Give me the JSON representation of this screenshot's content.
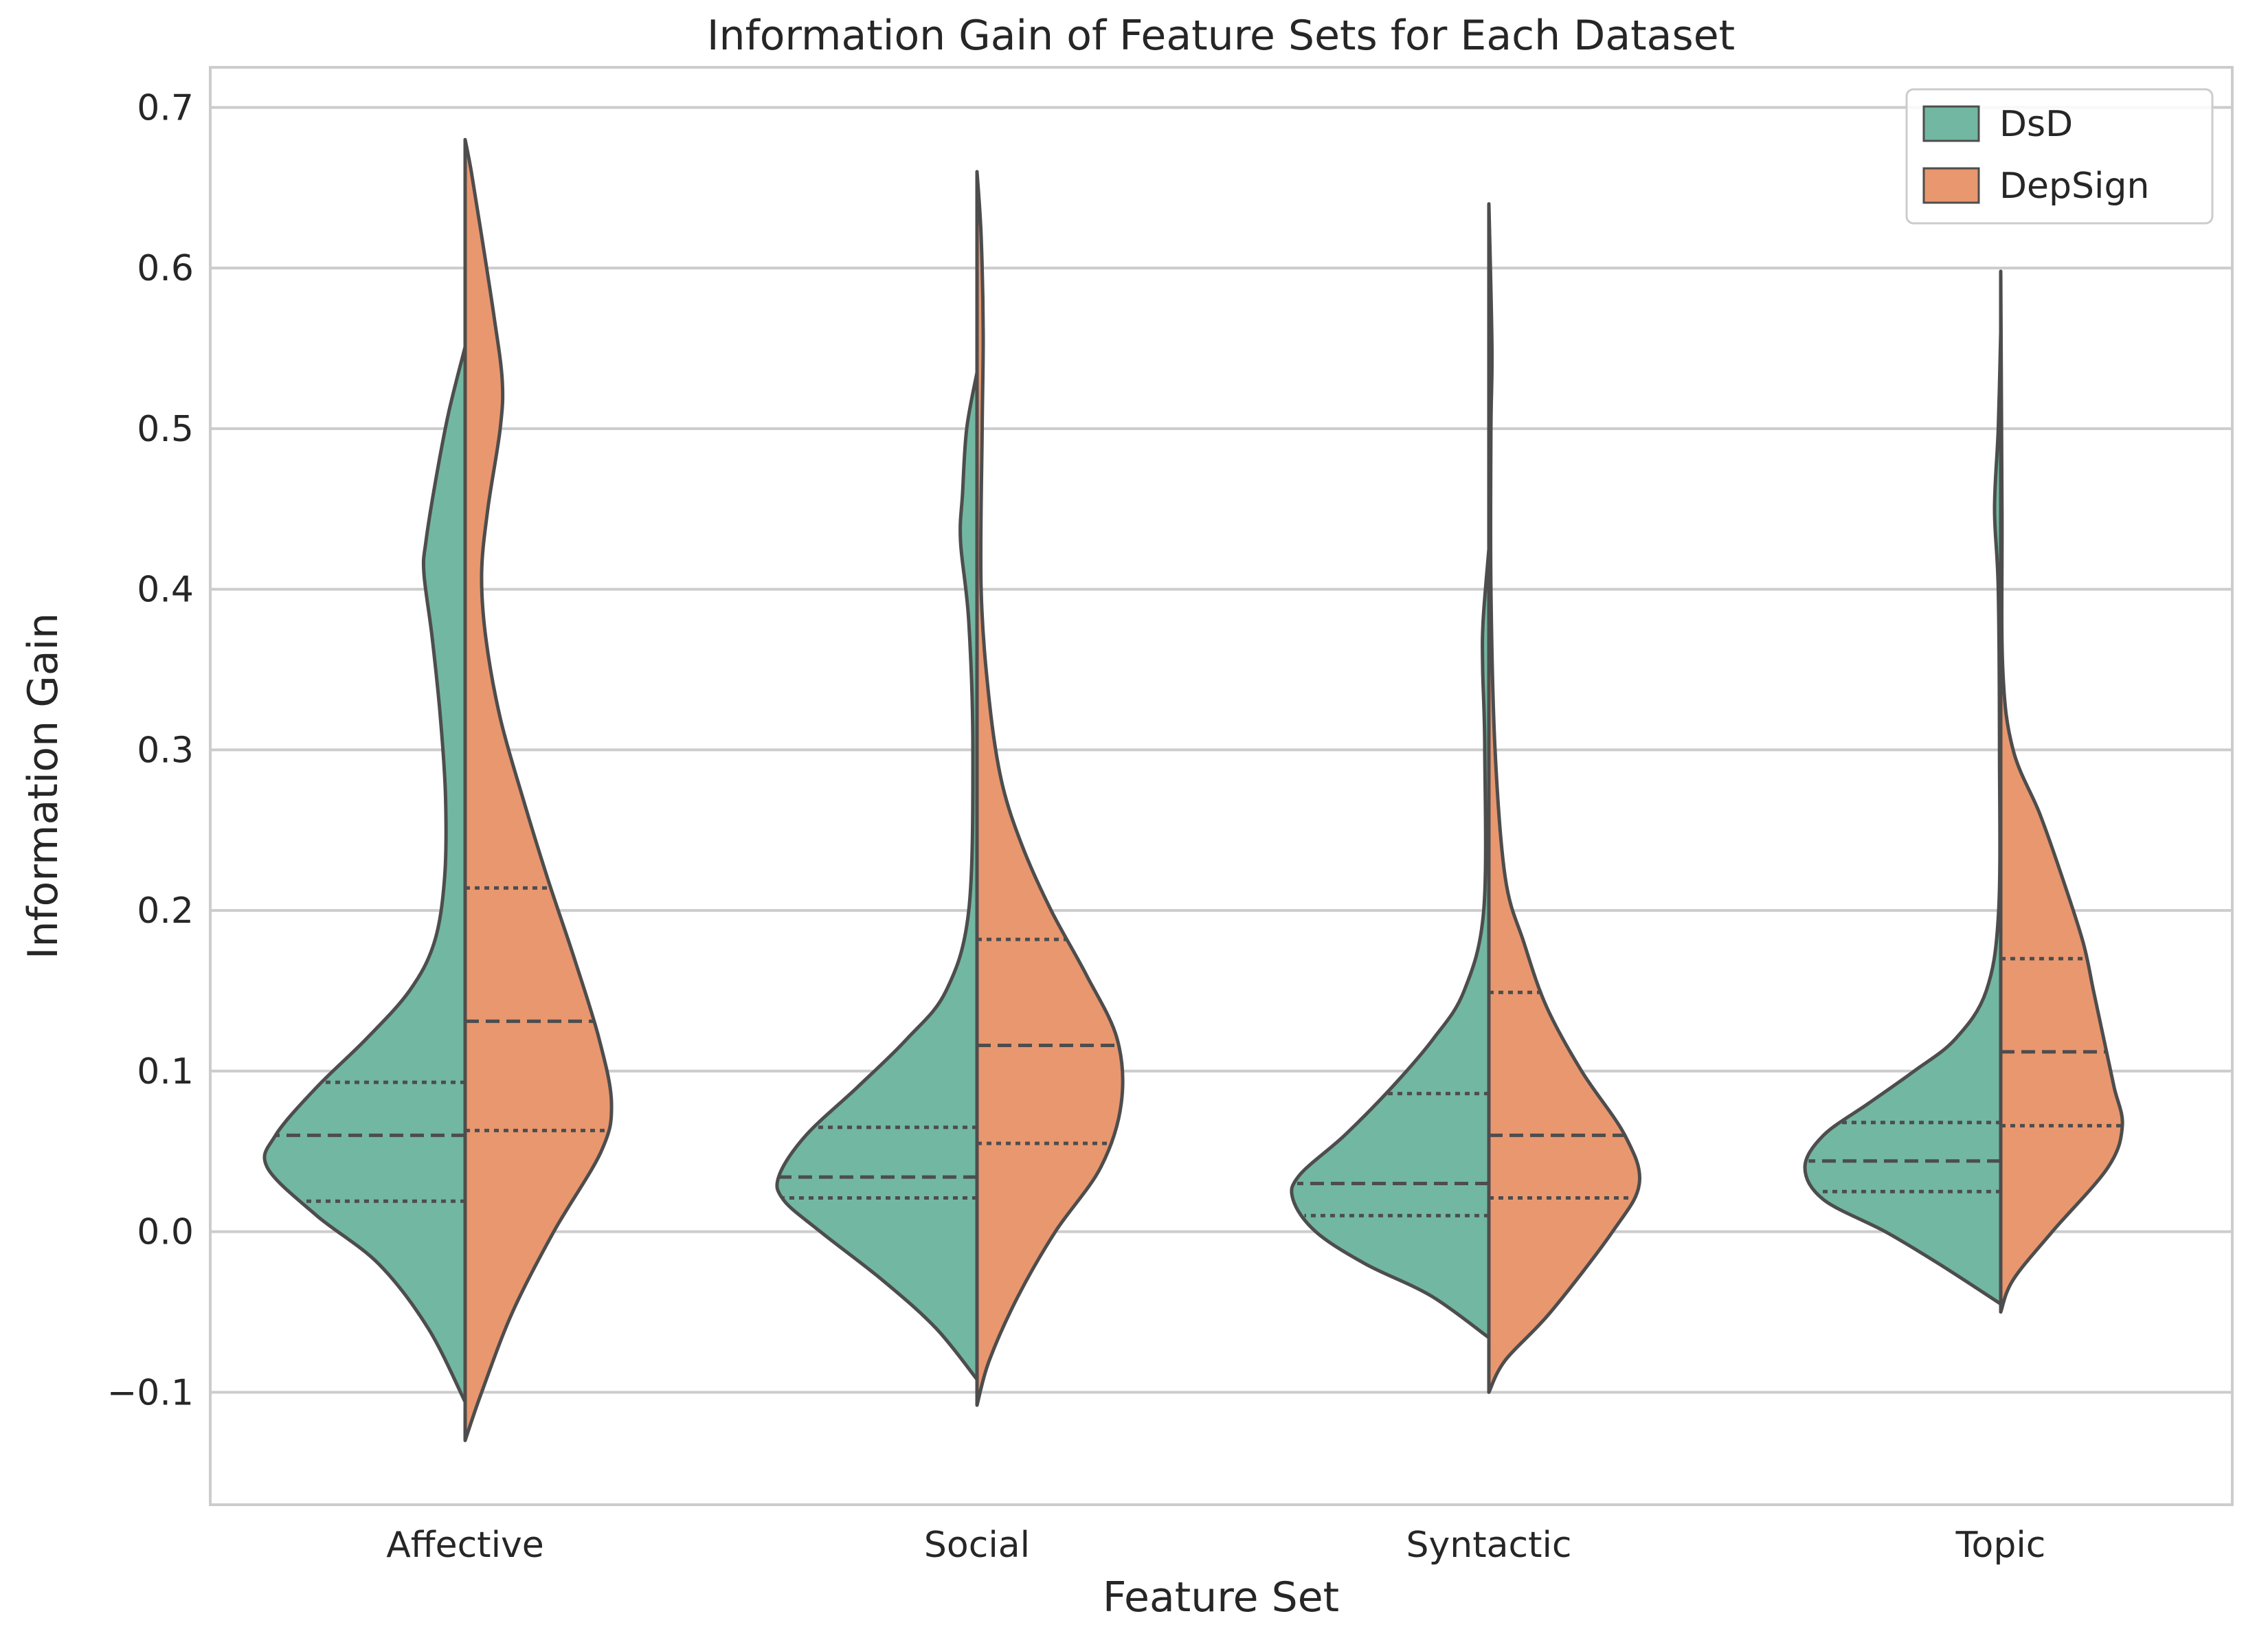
{
  "chart_data": {
    "type": "violin",
    "title": "Information Gain of Feature Sets for Each Dataset",
    "xlabel": "Feature Set",
    "ylabel": "Information Gain",
    "ylim": [
      -0.17,
      0.725
    ],
    "yticks": [
      -0.1,
      0.0,
      0.1,
      0.2,
      0.3,
      0.4,
      0.5,
      0.6,
      0.7
    ],
    "ytick_labels": [
      "−0.1",
      "0.0",
      "0.1",
      "0.2",
      "0.3",
      "0.4",
      "0.5",
      "0.6",
      "0.7"
    ],
    "grid": true,
    "split": true,
    "inner": "quartile",
    "legend_position": "top-right",
    "categories": [
      "Affective",
      "Social",
      "Syntactic",
      "Topic"
    ],
    "series": [
      {
        "name": "DsD",
        "color": "#72b7a2",
        "violins": [
          {
            "ymin": -0.106,
            "ymax": 0.551,
            "q1": 0.019,
            "median": 0.06,
            "q3": 0.093,
            "profile": [
              [
                -0.106,
                0.0
              ],
              [
                -0.06,
                0.18
              ],
              [
                -0.02,
                0.42
              ],
              [
                0.01,
                0.72
              ],
              [
                0.04,
                0.96
              ],
              [
                0.06,
                0.92
              ],
              [
                0.09,
                0.72
              ],
              [
                0.12,
                0.48
              ],
              [
                0.15,
                0.27
              ],
              [
                0.18,
                0.15
              ],
              [
                0.22,
                0.1
              ],
              [
                0.27,
                0.095
              ],
              [
                0.32,
                0.12
              ],
              [
                0.37,
                0.16
              ],
              [
                0.41,
                0.2
              ],
              [
                0.43,
                0.19
              ],
              [
                0.47,
                0.14
              ],
              [
                0.51,
                0.08
              ],
              [
                0.551,
                0.0
              ]
            ]
          },
          {
            "ymin": -0.092,
            "ymax": 0.535,
            "q1": 0.021,
            "median": 0.034,
            "q3": 0.065,
            "profile": [
              [
                -0.092,
                0.0
              ],
              [
                -0.06,
                0.2
              ],
              [
                -0.03,
                0.46
              ],
              [
                0.0,
                0.76
              ],
              [
                0.02,
                0.94
              ],
              [
                0.035,
                0.96
              ],
              [
                0.06,
                0.83
              ],
              [
                0.09,
                0.58
              ],
              [
                0.12,
                0.34
              ],
              [
                0.15,
                0.15
              ],
              [
                0.2,
                0.04
              ],
              [
                0.3,
                0.02
              ],
              [
                0.38,
                0.04
              ],
              [
                0.43,
                0.08
              ],
              [
                0.46,
                0.07
              ],
              [
                0.5,
                0.05
              ],
              [
                0.535,
                0.0
              ]
            ]
          },
          {
            "ymin": -0.066,
            "ymax": 0.425,
            "q1": 0.01,
            "median": 0.03,
            "q3": 0.086,
            "profile": [
              [
                -0.066,
                0.0
              ],
              [
                -0.04,
                0.28
              ],
              [
                -0.02,
                0.6
              ],
              [
                0.0,
                0.84
              ],
              [
                0.02,
                0.95
              ],
              [
                0.035,
                0.92
              ],
              [
                0.06,
                0.7
              ],
              [
                0.09,
                0.47
              ],
              [
                0.12,
                0.27
              ],
              [
                0.15,
                0.12
              ],
              [
                0.2,
                0.025
              ],
              [
                0.3,
                0.02
              ],
              [
                0.35,
                0.03
              ],
              [
                0.38,
                0.028
              ],
              [
                0.425,
                0.0
              ]
            ]
          },
          {
            "ymin": -0.045,
            "ymax": 0.56,
            "q1": 0.025,
            "median": 0.044,
            "q3": 0.068,
            "profile": [
              [
                -0.045,
                0.0
              ],
              [
                -0.02,
                0.3
              ],
              [
                0.0,
                0.56
              ],
              [
                0.02,
                0.86
              ],
              [
                0.04,
                0.95
              ],
              [
                0.06,
                0.86
              ],
              [
                0.08,
                0.64
              ],
              [
                0.1,
                0.42
              ],
              [
                0.12,
                0.22
              ],
              [
                0.15,
                0.07
              ],
              [
                0.2,
                0.01
              ],
              [
                0.3,
                0.006
              ],
              [
                0.4,
                0.012
              ],
              [
                0.45,
                0.03
              ],
              [
                0.5,
                0.012
              ],
              [
                0.56,
                0.0
              ]
            ]
          }
        ]
      },
      {
        "name": "DepSign",
        "color": "#e9976f",
        "violins": [
          {
            "ymin": -0.13,
            "ymax": 0.68,
            "q1": 0.063,
            "median": 0.131,
            "q3": 0.214,
            "profile": [
              [
                -0.13,
                0.0
              ],
              [
                -0.1,
                0.08
              ],
              [
                -0.05,
                0.23
              ],
              [
                0.0,
                0.43
              ],
              [
                0.05,
                0.66
              ],
              [
                0.08,
                0.71
              ],
              [
                0.12,
                0.65
              ],
              [
                0.17,
                0.53
              ],
              [
                0.22,
                0.4
              ],
              [
                0.27,
                0.28
              ],
              [
                0.32,
                0.17
              ],
              [
                0.37,
                0.1
              ],
              [
                0.41,
                0.08
              ],
              [
                0.45,
                0.11
              ],
              [
                0.5,
                0.17
              ],
              [
                0.53,
                0.18
              ],
              [
                0.57,
                0.14
              ],
              [
                0.62,
                0.08
              ],
              [
                0.66,
                0.03
              ],
              [
                0.68,
                0.0
              ]
            ]
          },
          {
            "ymin": -0.108,
            "ymax": 0.66,
            "q1": 0.055,
            "median": 0.116,
            "q3": 0.182,
            "profile": [
              [
                -0.108,
                0.0
              ],
              [
                -0.08,
                0.06
              ],
              [
                -0.04,
                0.2
              ],
              [
                0.0,
                0.38
              ],
              [
                0.04,
                0.6
              ],
              [
                0.08,
                0.7
              ],
              [
                0.12,
                0.68
              ],
              [
                0.16,
                0.53
              ],
              [
                0.2,
                0.36
              ],
              [
                0.24,
                0.22
              ],
              [
                0.28,
                0.12
              ],
              [
                0.33,
                0.06
              ],
              [
                0.4,
                0.02
              ],
              [
                0.5,
                0.025
              ],
              [
                0.56,
                0.03
              ],
              [
                0.62,
                0.02
              ],
              [
                0.66,
                0.0
              ]
            ]
          },
          {
            "ymin": -0.1,
            "ymax": 0.64,
            "q1": 0.021,
            "median": 0.06,
            "q3": 0.149,
            "profile": [
              [
                -0.1,
                0.0
              ],
              [
                -0.08,
                0.08
              ],
              [
                -0.05,
                0.3
              ],
              [
                0.0,
                0.6
              ],
              [
                0.03,
                0.73
              ],
              [
                0.06,
                0.66
              ],
              [
                0.1,
                0.45
              ],
              [
                0.14,
                0.28
              ],
              [
                0.18,
                0.17
              ],
              [
                0.22,
                0.08
              ],
              [
                0.3,
                0.03
              ],
              [
                0.4,
                0.01
              ],
              [
                0.5,
                0.01
              ],
              [
                0.55,
                0.015
              ],
              [
                0.64,
                0.0
              ]
            ]
          },
          {
            "ymin": -0.05,
            "ymax": 0.598,
            "q1": 0.066,
            "median": 0.112,
            "q3": 0.17,
            "profile": [
              [
                -0.05,
                0.0
              ],
              [
                -0.03,
                0.06
              ],
              [
                0.0,
                0.25
              ],
              [
                0.04,
                0.52
              ],
              [
                0.066,
                0.59
              ],
              [
                0.09,
                0.55
              ],
              [
                0.12,
                0.5
              ],
              [
                0.15,
                0.45
              ],
              [
                0.18,
                0.4
              ],
              [
                0.22,
                0.3
              ],
              [
                0.26,
                0.19
              ],
              [
                0.3,
                0.06
              ],
              [
                0.35,
                0.01
              ],
              [
                0.45,
                0.006
              ],
              [
                0.598,
                0.0
              ]
            ]
          }
        ]
      }
    ]
  }
}
